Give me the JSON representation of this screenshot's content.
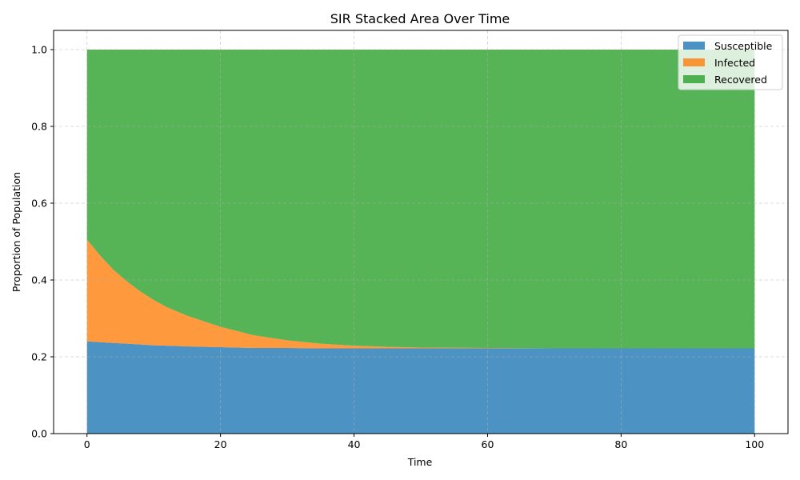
{
  "chart_data": {
    "type": "area",
    "stacked": true,
    "title": "SIR Stacked Area Over Time",
    "xlabel": "Time",
    "ylabel": "Proportion of Population",
    "xlim": [
      -5,
      105
    ],
    "ylim": [
      0.0,
      1.05
    ],
    "xticks": [
      0,
      20,
      40,
      60,
      80,
      100
    ],
    "yticks": [
      0.0,
      0.2,
      0.4,
      0.6,
      0.8,
      1.0
    ],
    "xtick_labels": [
      "0",
      "20",
      "40",
      "60",
      "80",
      "100"
    ],
    "ytick_labels": [
      "0.0",
      "0.2",
      "0.4",
      "0.6",
      "0.8",
      "1.0"
    ],
    "grid": true,
    "legend_position": "top-right",
    "x": [
      0,
      2,
      4,
      6,
      8,
      10,
      12,
      15,
      20,
      25,
      30,
      35,
      40,
      45,
      50,
      60,
      70,
      80,
      90,
      100
    ],
    "series": [
      {
        "name": "Susceptible",
        "color": "#1f77b4",
        "values": [
          0.24,
          0.238,
          0.236,
          0.234,
          0.232,
          0.23,
          0.229,
          0.227,
          0.225,
          0.223,
          0.223,
          0.222,
          0.222,
          0.222,
          0.222,
          0.222,
          0.222,
          0.222,
          0.222,
          0.222
        ]
      },
      {
        "name": "Infected",
        "color": "#ff7f0e",
        "values": [
          0.265,
          0.225,
          0.19,
          0.162,
          0.138,
          0.118,
          0.1,
          0.08,
          0.053,
          0.033,
          0.02,
          0.012,
          0.007,
          0.004,
          0.002,
          0.001,
          0.0,
          0.0,
          0.0,
          0.0
        ]
      },
      {
        "name": "Recovered",
        "color": "#2ca02c",
        "values": [
          0.495,
          0.537,
          0.574,
          0.604,
          0.63,
          0.652,
          0.671,
          0.693,
          0.722,
          0.744,
          0.757,
          0.766,
          0.771,
          0.774,
          0.776,
          0.777,
          0.778,
          0.778,
          0.778,
          0.778
        ]
      }
    ]
  }
}
